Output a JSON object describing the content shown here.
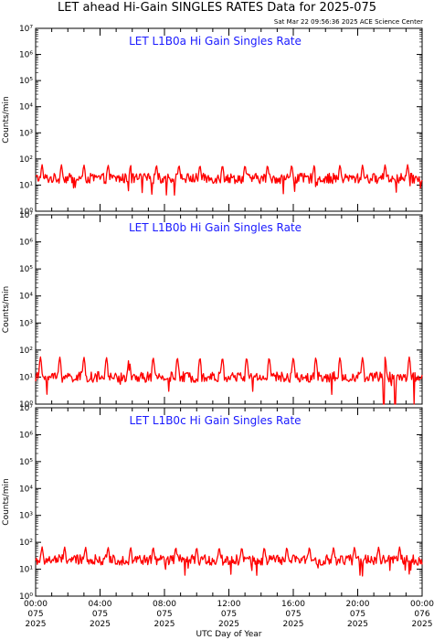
{
  "title": "LET ahead Hi-Gain SINGLES RATES Data for 2025-075",
  "timestamp": "Sat Mar 22 09:56:36 2025 ACE Science Center",
  "xlabel": "UTC Day of Year",
  "colors": {
    "trace": "#ff0000",
    "panel_title": "#1a1aff",
    "axes": "#000000"
  },
  "chart_data": [
    {
      "type": "line",
      "title": "LET L1B0a Hi Gain Singles Rate",
      "ylabel": "Counts/min",
      "yscale": "log",
      "ylim": [
        1,
        10000000
      ],
      "ytick_labels": [
        "10⁰",
        "10¹",
        "10²",
        "10³",
        "10⁴",
        "10⁵",
        "10⁶",
        "10⁷"
      ],
      "xlim": [
        0,
        24
      ],
      "baseline": 18,
      "spike_times": [
        0.4,
        1.6,
        3.0,
        4.5,
        5.9,
        7.5,
        8.9,
        10.2,
        11.6,
        13.0,
        14.4,
        15.9,
        17.3,
        18.9,
        20.3,
        21.7,
        23.1
      ],
      "spike_peak": 50,
      "series": [
        {
          "values": []
        }
      ]
    },
    {
      "type": "line",
      "title": "LET L1B0b Hi Gain Singles Rate",
      "ylabel": "Counts/min",
      "yscale": "log",
      "ylim": [
        1,
        10000000
      ],
      "ytick_labels": [
        "10⁰",
        "10¹",
        "10²",
        "10³",
        "10⁴",
        "10⁵",
        "10⁶",
        "10⁷"
      ],
      "xlim": [
        0,
        24
      ],
      "baseline": 10,
      "spike_times": [
        0.3,
        1.5,
        3.0,
        4.4,
        5.8,
        7.3,
        8.8,
        10.2,
        11.6,
        13.1,
        14.5,
        16.0,
        17.4,
        18.9,
        20.3,
        21.7,
        23.2
      ],
      "spike_peak": 50,
      "series": [
        {
          "values": []
        }
      ]
    },
    {
      "type": "line",
      "title": "LET L1B0c Hi Gain Singles Rate",
      "ylabel": "Counts/min",
      "yscale": "log",
      "ylim": [
        1,
        10000000
      ],
      "ytick_labels": [
        "10⁰",
        "10¹",
        "10²",
        "10³",
        "10⁴",
        "10⁵",
        "10⁶",
        "10⁷"
      ],
      "xlim": [
        0,
        24
      ],
      "baseline": 22,
      "spike_times": [
        0.4,
        1.8,
        3.1,
        4.5,
        5.9,
        7.3,
        8.7,
        10.0,
        11.4,
        12.8,
        14.2,
        15.6,
        17.0,
        18.5,
        19.8,
        21.3,
        22.6
      ],
      "spike_peak": 55,
      "series": [
        {
          "values": []
        }
      ]
    }
  ],
  "x_ticks": [
    {
      "time": "00:00",
      "doy": "075",
      "year": "2025"
    },
    {
      "time": "04:00",
      "doy": "075",
      "year": "2025"
    },
    {
      "time": "08:00",
      "doy": "075",
      "year": "2025"
    },
    {
      "time": "12:00",
      "doy": "075",
      "year": "2025"
    },
    {
      "time": "16:00",
      "doy": "075",
      "year": "2025"
    },
    {
      "time": "20:00",
      "doy": "075",
      "year": "2025"
    },
    {
      "time": "00:00",
      "doy": "076",
      "year": "2025"
    }
  ]
}
